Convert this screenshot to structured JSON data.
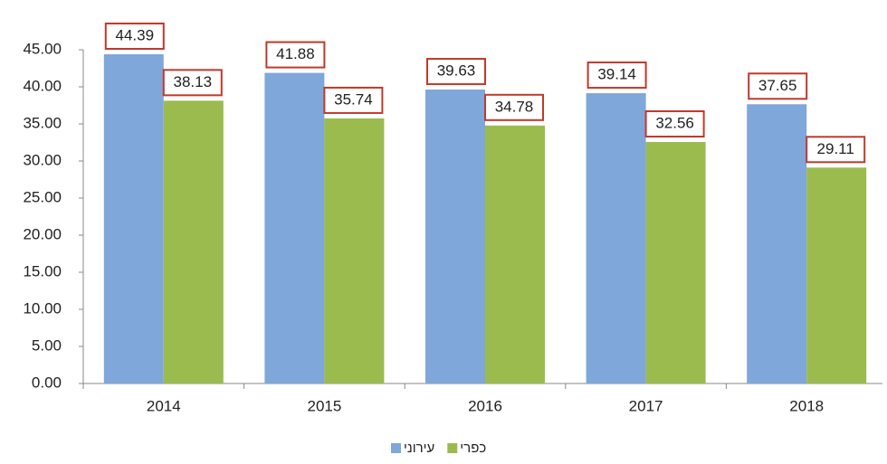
{
  "chart_data": {
    "type": "bar",
    "categories": [
      "2014",
      "2015",
      "2016",
      "2017",
      "2018"
    ],
    "series": [
      {
        "name": "עירוני",
        "color": "#7fa7d9",
        "values": [
          44.39,
          41.88,
          39.63,
          39.14,
          37.65
        ]
      },
      {
        "name": "כפרי",
        "color": "#9bbb4f",
        "values": [
          38.13,
          35.74,
          34.78,
          32.56,
          29.11
        ]
      }
    ],
    "ylim": [
      0,
      45
    ],
    "yticks": [
      {
        "value": 0,
        "label": "0.00"
      },
      {
        "value": 5,
        "label": "5.00"
      },
      {
        "value": 10,
        "label": "10.00"
      },
      {
        "value": 15,
        "label": "15.00"
      },
      {
        "value": 20,
        "label": "20.00"
      },
      {
        "value": 25,
        "label": "25.00"
      },
      {
        "value": 30,
        "label": "30.00"
      },
      {
        "value": 35,
        "label": "35.00"
      },
      {
        "value": 40,
        "label": "40.00"
      },
      {
        "value": 45,
        "label": "45.00"
      }
    ],
    "legend": "bottom"
  }
}
